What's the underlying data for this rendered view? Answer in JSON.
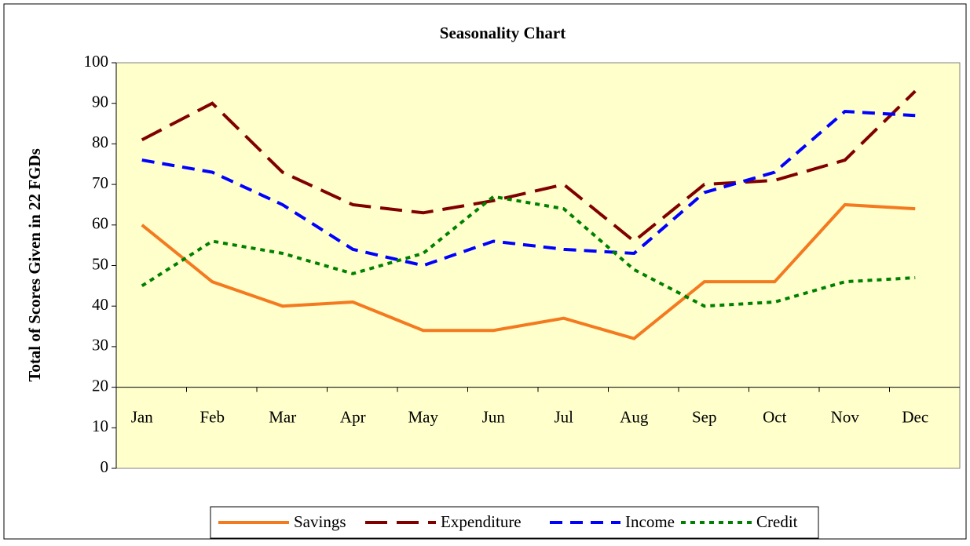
{
  "chart_data": {
    "type": "line",
    "title": "Seasonality Chart",
    "y_label": "Total of Scores Given in 22 FGDs",
    "categories": [
      "Jan",
      "Feb",
      "Mar",
      "Apr",
      "May",
      "Jun",
      "Jul",
      "Aug",
      "Sep",
      "Oct",
      "Nov",
      "Dec"
    ],
    "series": [
      {
        "name": "Savings",
        "color": "#f47a20",
        "line_style": "solid",
        "values": [
          60,
          46,
          40,
          41,
          34,
          34,
          37,
          32,
          46,
          46,
          65,
          64
        ]
      },
      {
        "name": "Expenditure",
        "color": "#800000",
        "line_style": "long-dash",
        "values": [
          81,
          90,
          73,
          65,
          63,
          66,
          70,
          56,
          70,
          71,
          76,
          93
        ]
      },
      {
        "name": "Income",
        "color": "#0000ff",
        "line_style": "dash",
        "values": [
          76,
          73,
          65,
          54,
          50,
          56,
          54,
          53,
          68,
          73,
          88,
          87
        ]
      },
      {
        "name": "Credit",
        "color": "#008000",
        "line_style": "dot",
        "values": [
          45,
          56,
          53,
          48,
          53,
          67,
          64,
          49,
          40,
          41,
          46,
          47
        ]
      }
    ],
    "ylim": [
      0,
      100
    ],
    "yticks": [
      0,
      10,
      20,
      30,
      40,
      50,
      60,
      70,
      80,
      90,
      100
    ],
    "x_axis_crosses": 20,
    "grid": false,
    "legend": "bottom",
    "plot_background": "#ffffcc"
  }
}
